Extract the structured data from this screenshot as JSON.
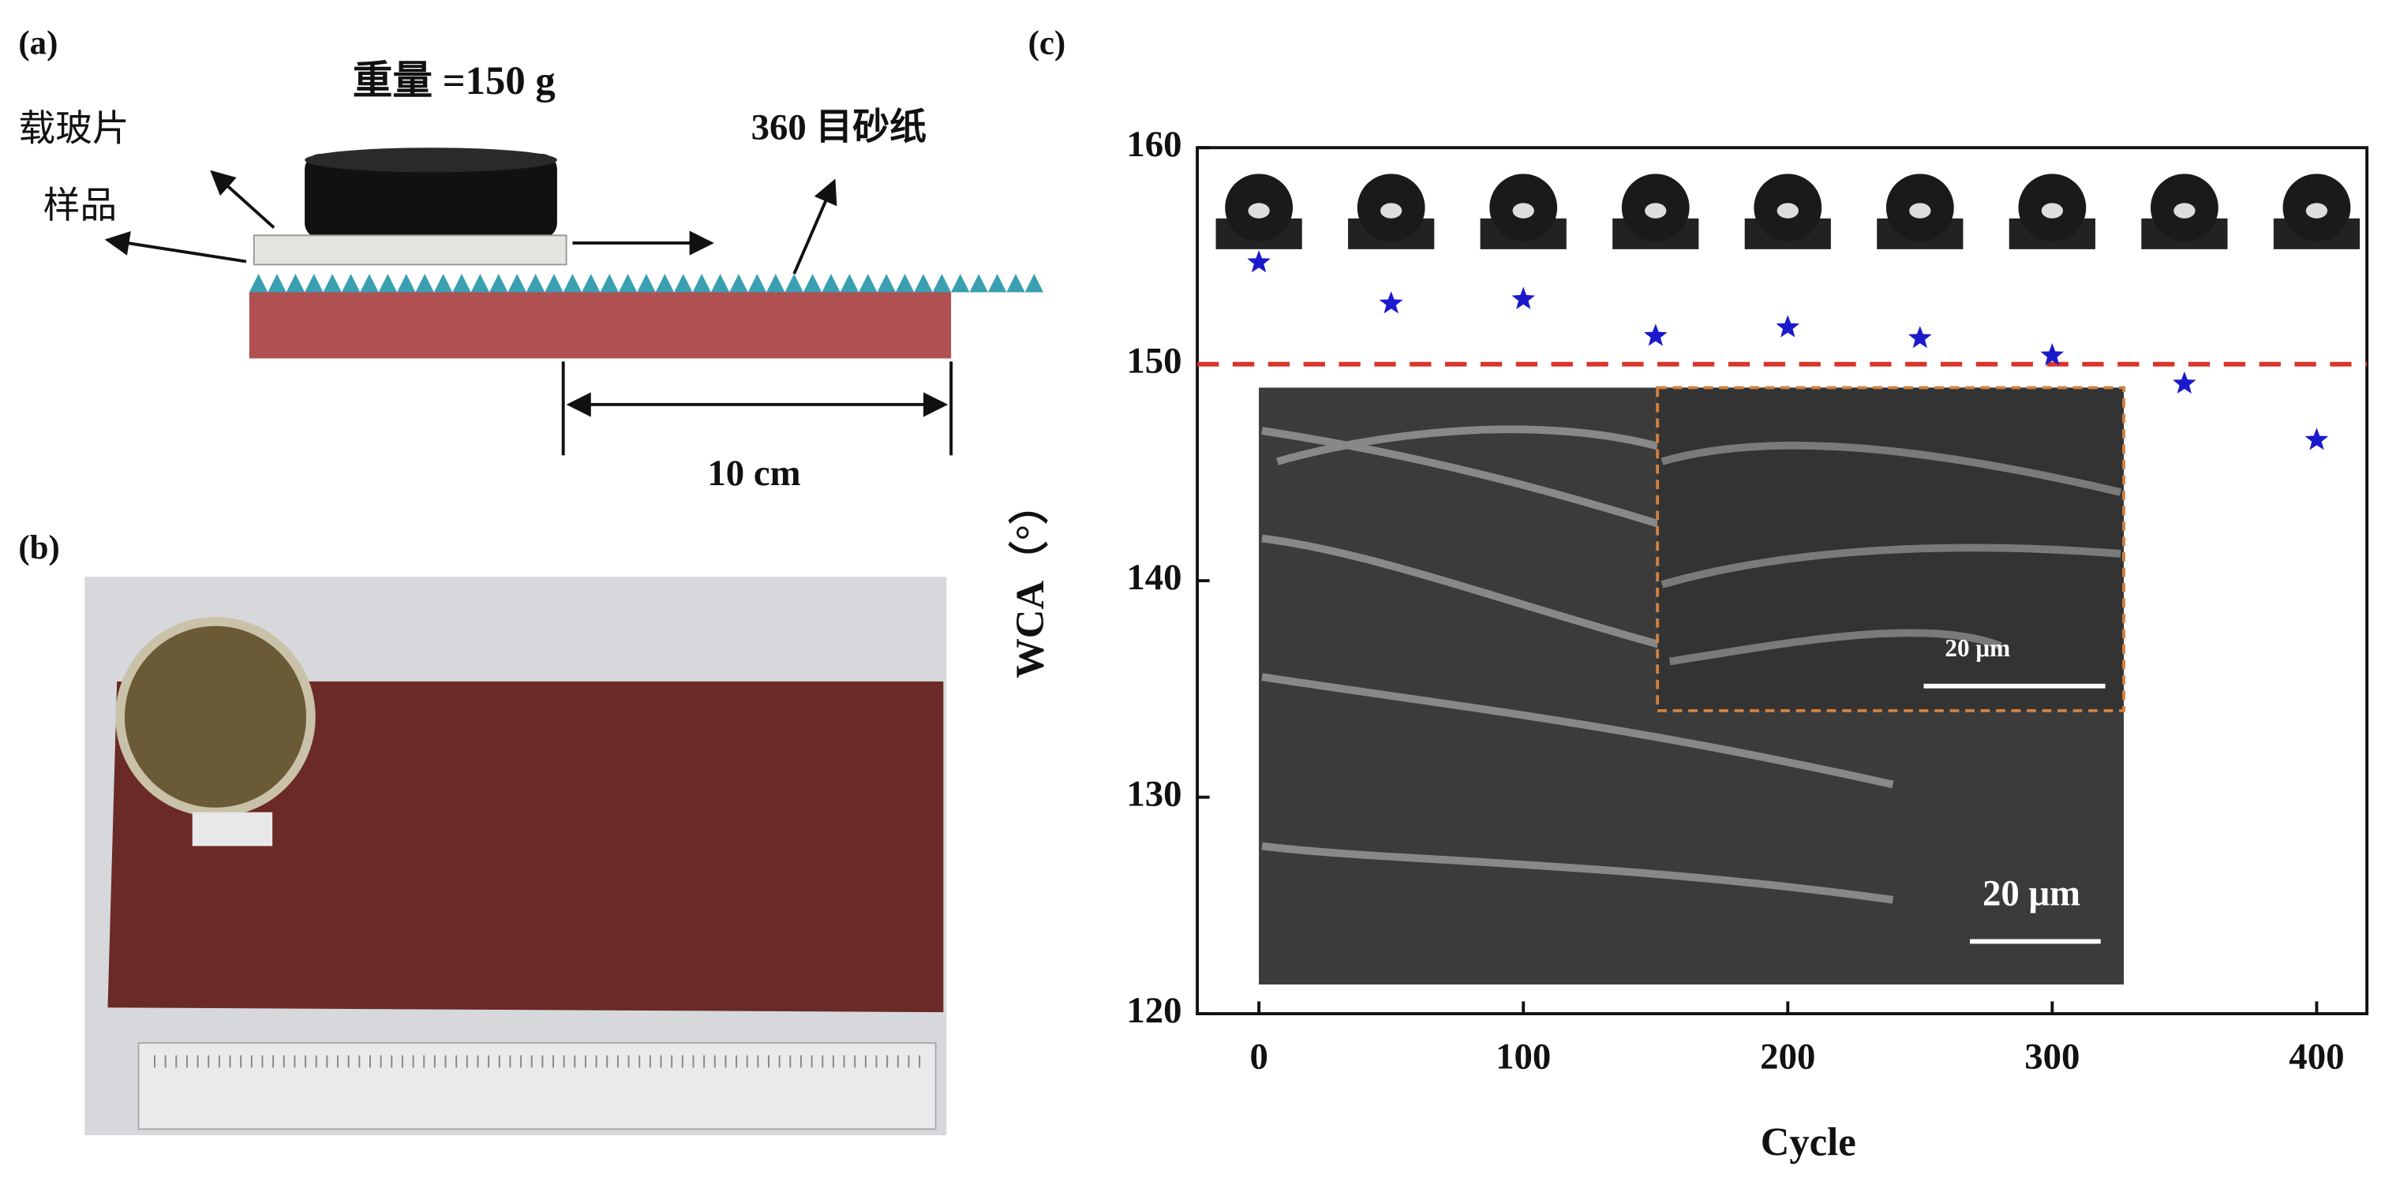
{
  "panel_a": {
    "label": "(a)",
    "weight": "重量 =150 g",
    "slide": "载玻片",
    "sample": "样品",
    "sandpaper": "360 目砂纸",
    "distance": "10 cm"
  },
  "panel_b": {
    "label": "(b)"
  },
  "panel_c": {
    "label": "(c)",
    "scale_bar_large": "20 μm",
    "scale_bar_small": "20 μm"
  },
  "chart_data": {
    "type": "scatter",
    "x_label": "Cycle",
    "y_label": "WCA（°）",
    "series": [
      {
        "color": "#1a1acc",
        "x": [
          0,
          50,
          100,
          150,
          200,
          250,
          300,
          350,
          400
        ],
        "values": [
          154.7,
          152.8,
          153.0,
          151.3,
          151.7,
          151.2,
          150.4,
          149.1,
          146.5
        ]
      }
    ],
    "reference_line": {
      "value": 150,
      "color": "#d9342b"
    },
    "xlim": [
      -23.3,
      419
    ],
    "xticks": [
      0,
      100,
      200,
      300,
      400
    ],
    "ylim": [
      120,
      160
    ],
    "yticks": [
      120,
      130,
      140,
      150,
      160
    ]
  }
}
